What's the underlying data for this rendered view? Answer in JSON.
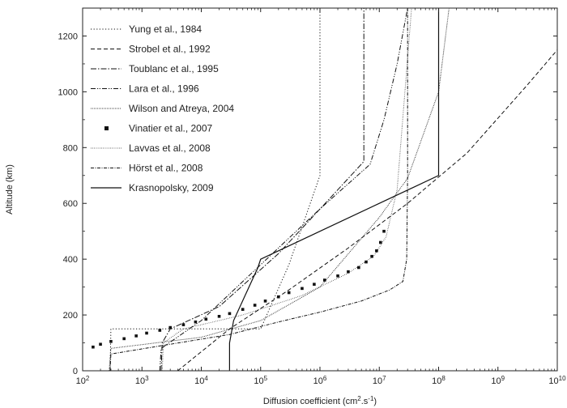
{
  "chart_data": {
    "type": "line",
    "xlabel": "Diffusion coefficient (cm",
    "xlabel_sup": "2",
    "xlabel_mid": ".s",
    "xlabel_sup2": "-1",
    "xlabel_end": ")",
    "ylabel": "Altitude (km)",
    "x_scale": "log",
    "xlim": [
      100,
      10000000000
    ],
    "ylim": [
      0,
      1300
    ],
    "x_ticks": [
      {
        "value": 100,
        "base": "10",
        "exp": "2"
      },
      {
        "value": 1000,
        "base": "10",
        "exp": "3"
      },
      {
        "value": 10000,
        "base": "10",
        "exp": "4"
      },
      {
        "value": 100000,
        "base": "10",
        "exp": "5"
      },
      {
        "value": 1000000,
        "base": "10",
        "exp": "6"
      },
      {
        "value": 10000000,
        "base": "10",
        "exp": "7"
      },
      {
        "value": 100000000,
        "base": "10",
        "exp": "8"
      },
      {
        "value": 1000000000,
        "base": "10",
        "exp": "9"
      },
      {
        "value": 10000000000,
        "base": "10",
        "exp": "10"
      }
    ],
    "y_ticks": [
      "0",
      "200",
      "400",
      "600",
      "800",
      "1000",
      "1200"
    ],
    "legend_position": "top-left",
    "series": [
      {
        "name": "Yung et al., 1984",
        "style": "dotted",
        "kind": "line",
        "x": [
          290,
          300,
          100000,
          300000,
          1000000,
          1000000,
          1000000
        ],
        "y": [
          0,
          150,
          150,
          380,
          700,
          700,
          1300
        ]
      },
      {
        "name": "Strobel et al., 1992",
        "style": "dashed",
        "kind": "line",
        "x": [
          4000,
          30000,
          300000,
          3000000,
          30000000,
          300000000,
          3000000000,
          10000000000
        ],
        "y": [
          0,
          150,
          290,
          440,
          600,
          780,
          1020,
          1150
        ]
      },
      {
        "name": "Toublanc et al., 1995",
        "style": "dashdot",
        "kind": "line",
        "x": [
          2100,
          2200,
          3000,
          20000,
          200000,
          1500000,
          5500000,
          5500000
        ],
        "y": [
          0,
          100,
          150,
          230,
          420,
          620,
          750,
          1300
        ]
      },
      {
        "name": "Lara et al., 1996",
        "style": "dashdotdot",
        "kind": "line",
        "x": [
          2000,
          2100,
          10000,
          100000,
          1000000,
          7000000,
          12000000,
          20000000,
          30000000
        ],
        "y": [
          0,
          80,
          180,
          380,
          580,
          740,
          900,
          1100,
          1300
        ]
      },
      {
        "name": "Wilson and Atreya, 2004",
        "style": "dotted-dense",
        "kind": "line",
        "x": [
          280,
          300,
          10000,
          100000,
          1000000,
          10000000,
          30000000,
          100000000,
          150000000
        ],
        "y": [
          0,
          80,
          120,
          180,
          300,
          550,
          690,
          1000,
          1300
        ]
      },
      {
        "name": "Vinatier et al., 2007",
        "style": "markers",
        "kind": "scatter",
        "x": [
          150,
          200,
          300,
          500,
          800,
          1200,
          2000,
          3000,
          5000,
          8000,
          12000,
          20000,
          30000,
          50000,
          80000,
          120000,
          200000,
          300000,
          500000,
          800000,
          1200000,
          2000000,
          3000000,
          4500000,
          6000000,
          7500000,
          9000000,
          10500000,
          12000000
        ],
        "y": [
          85,
          95,
          105,
          115,
          125,
          135,
          145,
          155,
          165,
          175,
          185,
          195,
          205,
          220,
          235,
          250,
          265,
          280,
          295,
          310,
          325,
          340,
          355,
          370,
          390,
          410,
          430,
          460,
          500
        ]
      },
      {
        "name": "Lavvas et al., 2008",
        "style": "dotted-fine",
        "kind": "line",
        "x": [
          2200,
          2300,
          5000,
          50000,
          500000,
          3000000,
          8000000,
          13000000,
          20000000,
          35000000
        ],
        "y": [
          0,
          100,
          150,
          200,
          270,
          350,
          410,
          480,
          650,
          1300
        ]
      },
      {
        "name": "Hörst et al., 2008",
        "style": "dashdot-fine",
        "kind": "line",
        "x": [
          290,
          300,
          30000,
          200000,
          1000000,
          5000000,
          15000000,
          25000000,
          29000000,
          30000000,
          30000000
        ],
        "y": [
          0,
          60,
          130,
          175,
          210,
          250,
          290,
          320,
          400,
          700,
          1300
        ]
      },
      {
        "name": "Krasnopolsky, 2009",
        "style": "solid",
        "kind": "line",
        "x": [
          30000,
          30000,
          35000,
          90000,
          100000,
          1000000,
          10000000,
          100000000,
          100000000
        ],
        "y": [
          0,
          100,
          180,
          370,
          400,
          500,
          600,
          700,
          1300
        ]
      }
    ]
  }
}
